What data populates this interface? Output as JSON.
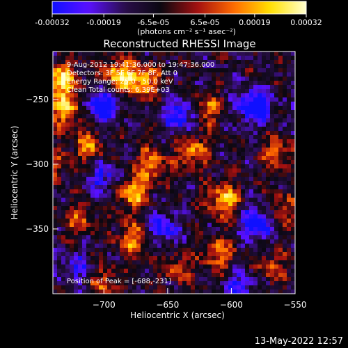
{
  "chart_data": {
    "type": "heatmap",
    "title": "Reconstructed RHESSI Image",
    "xlabel": "Heliocentric X (arcsec)",
    "ylabel": "Heliocentric Y (arcsec)",
    "xlim": [
      -740,
      -550
    ],
    "ylim": [
      -400,
      -213
    ],
    "x_ticks": [
      -700,
      -650,
      -600,
      -550
    ],
    "y_ticks": [
      -250,
      -300,
      -350
    ],
    "colorbar": {
      "min": -0.00032,
      "max": 0.00032,
      "tick_labels": [
        "-0.00032",
        "-0.00019",
        "-6.5e-05",
        "6.5e-05",
        "0.00019",
        "0.00032"
      ],
      "label": "(photons cm⁻² s⁻¹ asec⁻²)"
    },
    "colormap_stops": [
      "#1010ff",
      "#5a10ff",
      "#2a0e4a",
      "#0a0810",
      "#a31010",
      "#ff6a00",
      "#ffe000",
      "#ffffd0"
    ],
    "annotations": {
      "time_range": "9-Aug-2012 19:41:36.000 to 19:47:36.000",
      "detectors": "Detectors: 3F 5F 6F 7F 8F, Att 0",
      "energy": "Energy Range: 25.0 - 50.0 keV",
      "method": "Clean    Total counts: 6.39E+03",
      "peak": "Position of Peak = [-688,-231]"
    },
    "peak_position": [
      -688,
      -231
    ],
    "bright_spots": [
      {
        "x": -733,
        "y": -235,
        "value": 0.00032
      },
      {
        "x": -730,
        "y": -258,
        "value": 0.00028
      },
      {
        "x": -688,
        "y": -231,
        "value": 0.00032
      },
      {
        "x": -669,
        "y": -236,
        "value": 0.00028
      },
      {
        "x": -712,
        "y": -286,
        "value": 0.00022
      },
      {
        "x": -720,
        "y": -342,
        "value": 0.00018
      },
      {
        "x": -677,
        "y": -322,
        "value": 0.0003
      },
      {
        "x": -678,
        "y": -358,
        "value": 0.00026
      },
      {
        "x": -663,
        "y": -300,
        "value": 0.00022
      },
      {
        "x": -618,
        "y": -258,
        "value": 0.0002
      },
      {
        "x": -630,
        "y": -290,
        "value": 0.00024
      },
      {
        "x": -606,
        "y": -328,
        "value": 0.0003
      },
      {
        "x": -609,
        "y": -370,
        "value": 0.00022
      },
      {
        "x": -563,
        "y": -292,
        "value": 0.0002
      },
      {
        "x": -560,
        "y": -335,
        "value": 0.00016
      },
      {
        "x": -570,
        "y": -380,
        "value": 0.00018
      },
      {
        "x": -700,
        "y": -392,
        "value": 0.00018
      },
      {
        "x": -642,
        "y": -380,
        "value": 0.00016
      },
      {
        "x": -740,
        "y": -300,
        "value": 0.00016
      }
    ],
    "dark_spots": [
      {
        "x": -700,
        "y": -255,
        "value": -0.0003
      },
      {
        "x": -640,
        "y": -262,
        "value": -0.00026
      },
      {
        "x": -582,
        "y": -255,
        "value": -0.00032
      },
      {
        "x": -655,
        "y": -350,
        "value": -0.00022
      },
      {
        "x": -580,
        "y": -345,
        "value": -0.00028
      },
      {
        "x": -592,
        "y": -395,
        "value": -0.0002
      },
      {
        "x": -700,
        "y": -310,
        "value": -0.00018
      },
      {
        "x": -723,
        "y": -380,
        "value": -0.00016
      }
    ]
  },
  "footer": {
    "timestamp": "13-May-2022 12:57"
  }
}
